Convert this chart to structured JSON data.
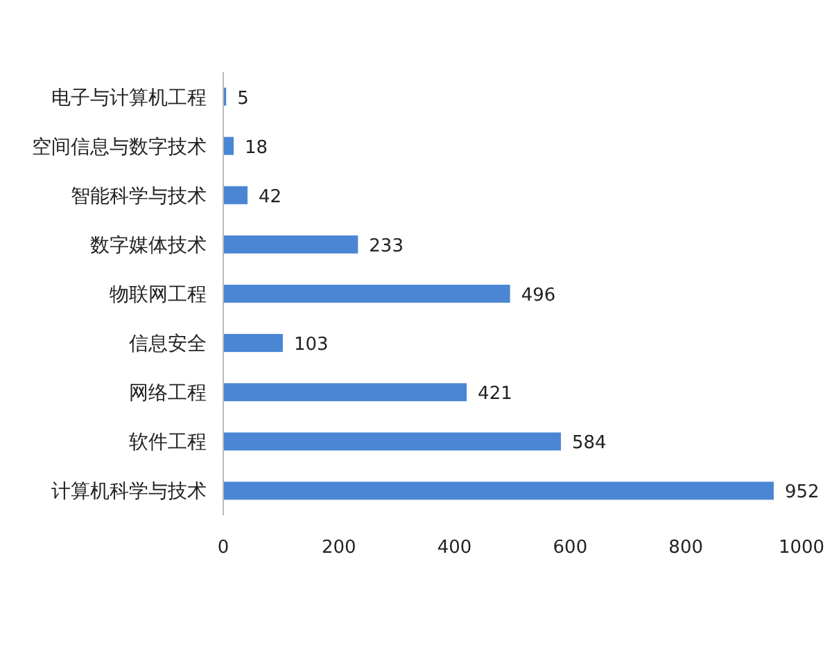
{
  "chart_data": {
    "type": "bar",
    "orientation": "horizontal",
    "categories": [
      "电子与计算机工程",
      "空间信息与数字技术",
      "智能科学与技术",
      "数字媒体技术",
      "物联网工程",
      "信息安全",
      "网络工程",
      "软件工程",
      "计算机科学与技术"
    ],
    "values": [
      5,
      18,
      42,
      233,
      496,
      103,
      421,
      584,
      952
    ],
    "color": "#4a86d4",
    "xlim": [
      0,
      1000
    ],
    "xticks": [
      0,
      200,
      400,
      600,
      800,
      1000
    ],
    "data_labels": true
  }
}
